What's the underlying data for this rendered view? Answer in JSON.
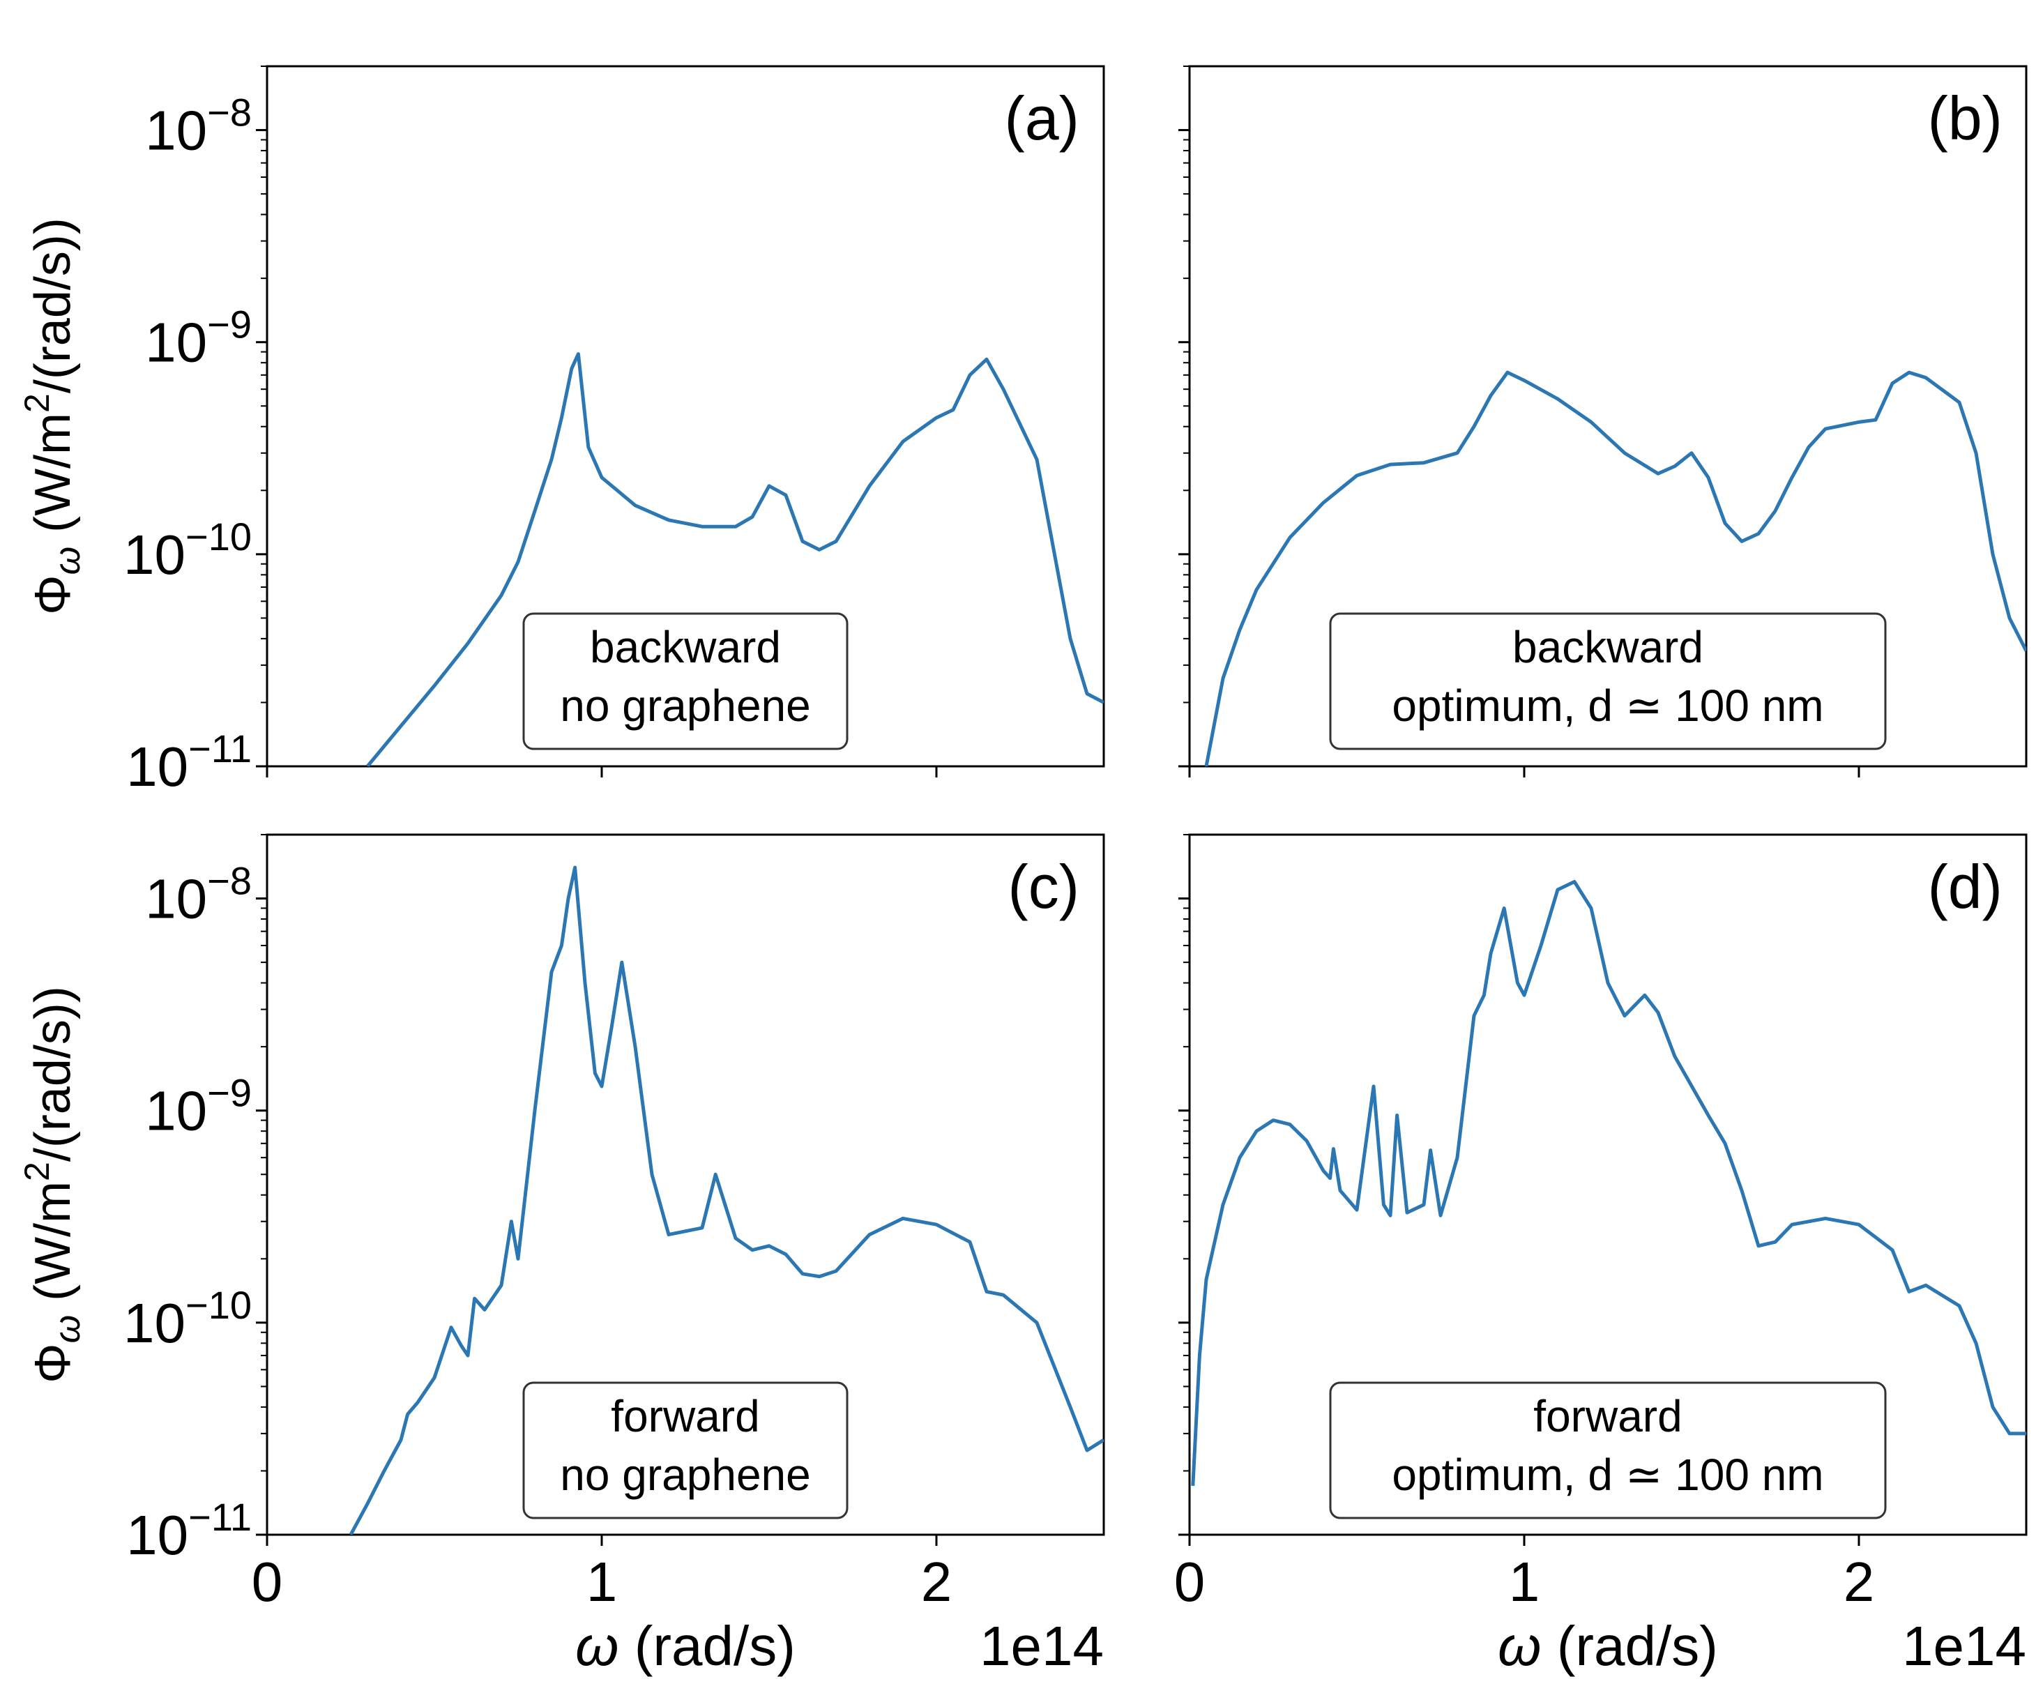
{
  "chart_data": [
    {
      "type": "line",
      "panel": "(a)",
      "annotation": [
        "backward",
        "no graphene"
      ],
      "xlim": [
        0,
        2.5
      ],
      "x_scale": "1e14",
      "ylim": [
        1e-11,
        2e-08
      ],
      "y_scale": "log",
      "color": "#2a77b4",
      "x": [
        0.3,
        0.4,
        0.5,
        0.6,
        0.7,
        0.75,
        0.8,
        0.85,
        0.88,
        0.91,
        0.93,
        0.96,
        1.0,
        1.1,
        1.2,
        1.3,
        1.4,
        1.45,
        1.5,
        1.55,
        1.6,
        1.65,
        1.7,
        1.8,
        1.9,
        2.0,
        2.05,
        2.1,
        2.15,
        2.2,
        2.3,
        2.4,
        2.45,
        2.5
      ],
      "y": [
        1e-11,
        1.55e-11,
        2.4e-11,
        3.8e-11,
        6.4e-11,
        9.2e-11,
        1.6e-10,
        2.8e-10,
        4.4e-10,
        7.5e-10,
        8.8e-10,
        3.2e-10,
        2.3e-10,
        1.7e-10,
        1.45e-10,
        1.35e-10,
        1.35e-10,
        1.5e-10,
        2.1e-10,
        1.9e-10,
        1.15e-10,
        1.05e-10,
        1.15e-10,
        2.1e-10,
        3.4e-10,
        4.4e-10,
        4.8e-10,
        7e-10,
        8.3e-10,
        6e-10,
        2.8e-10,
        4e-11,
        2.2e-11,
        2e-11
      ]
    },
    {
      "type": "line",
      "panel": "(b)",
      "annotation": [
        "backward",
        "optimum, d ≃ 100 nm"
      ],
      "xlim": [
        0,
        2.5
      ],
      "x_scale": "1e14",
      "ylim": [
        1e-11,
        2e-08
      ],
      "y_scale": "log",
      "color": "#2a77b4",
      "x": [
        0.05,
        0.1,
        0.15,
        0.2,
        0.3,
        0.4,
        0.5,
        0.6,
        0.7,
        0.8,
        0.85,
        0.9,
        0.95,
        1.0,
        1.1,
        1.2,
        1.3,
        1.4,
        1.45,
        1.5,
        1.55,
        1.6,
        1.65,
        1.7,
        1.75,
        1.8,
        1.85,
        1.9,
        2.0,
        2.05,
        2.1,
        2.15,
        2.2,
        2.3,
        2.35,
        2.4,
        2.45,
        2.5
      ],
      "y": [
        1e-11,
        2.6e-11,
        4.4e-11,
        6.8e-11,
        1.2e-10,
        1.75e-10,
        2.35e-10,
        2.65e-10,
        2.7e-10,
        3e-10,
        4e-10,
        5.6e-10,
        7.2e-10,
        6.6e-10,
        5.4e-10,
        4.2e-10,
        3e-10,
        2.4e-10,
        2.6e-10,
        3e-10,
        2.3e-10,
        1.4e-10,
        1.15e-10,
        1.25e-10,
        1.6e-10,
        2.3e-10,
        3.2e-10,
        3.9e-10,
        4.2e-10,
        4.3e-10,
        6.4e-10,
        7.2e-10,
        6.8e-10,
        5.2e-10,
        3e-10,
        1e-10,
        5e-11,
        3.5e-11
      ]
    },
    {
      "type": "line",
      "panel": "(c)",
      "annotation": [
        "forward",
        "no graphene"
      ],
      "xlim": [
        0,
        2.5
      ],
      "x_scale": "1e14",
      "ylim": [
        1e-11,
        2e-08
      ],
      "y_scale": "log",
      "color": "#2a77b4",
      "x": [
        0.25,
        0.3,
        0.35,
        0.4,
        0.42,
        0.45,
        0.5,
        0.55,
        0.58,
        0.6,
        0.62,
        0.65,
        0.7,
        0.73,
        0.75,
        0.8,
        0.85,
        0.88,
        0.9,
        0.92,
        0.95,
        0.98,
        1.0,
        1.03,
        1.06,
        1.1,
        1.15,
        1.2,
        1.3,
        1.34,
        1.4,
        1.45,
        1.5,
        1.55,
        1.6,
        1.65,
        1.7,
        1.8,
        1.9,
        2.0,
        2.1,
        2.15,
        2.2,
        2.3,
        2.4,
        2.45,
        2.5
      ],
      "y": [
        1e-11,
        1.4e-11,
        2e-11,
        2.8e-11,
        3.7e-11,
        4.2e-11,
        5.5e-11,
        9.5e-11,
        7.8e-11,
        7e-11,
        1.3e-10,
        1.15e-10,
        1.5e-10,
        3e-10,
        2e-10,
        1e-09,
        4.5e-09,
        6e-09,
        1e-08,
        1.4e-08,
        4e-09,
        1.5e-09,
        1.3e-09,
        2.5e-09,
        5e-09,
        2e-09,
        5e-10,
        2.6e-10,
        2.8e-10,
        5e-10,
        2.5e-10,
        2.2e-10,
        2.3e-10,
        2.1e-10,
        1.7e-10,
        1.65e-10,
        1.75e-10,
        2.6e-10,
        3.1e-10,
        2.9e-10,
        2.4e-10,
        1.4e-10,
        1.35e-10,
        1e-10,
        4e-11,
        2.5e-11,
        2.8e-11
      ]
    },
    {
      "type": "line",
      "panel": "(d)",
      "annotation": [
        "forward",
        "optimum, d ≃ 100 nm"
      ],
      "xlim": [
        0,
        2.5
      ],
      "x_scale": "1e14",
      "ylim": [
        1e-11,
        2e-08
      ],
      "y_scale": "log",
      "color": "#2a77b4",
      "x": [
        0.01,
        0.03,
        0.05,
        0.1,
        0.15,
        0.2,
        0.25,
        0.3,
        0.35,
        0.4,
        0.42,
        0.43,
        0.45,
        0.5,
        0.55,
        0.58,
        0.6,
        0.62,
        0.65,
        0.7,
        0.72,
        0.75,
        0.8,
        0.85,
        0.88,
        0.9,
        0.94,
        0.98,
        1.0,
        1.05,
        1.1,
        1.15,
        1.2,
        1.25,
        1.3,
        1.36,
        1.4,
        1.45,
        1.55,
        1.6,
        1.65,
        1.7,
        1.75,
        1.8,
        1.9,
        2.0,
        2.1,
        2.15,
        2.2,
        2.3,
        2.35,
        2.4,
        2.45,
        2.5
      ],
      "y": [
        1.7e-11,
        7e-11,
        1.6e-10,
        3.6e-10,
        6e-10,
        8e-10,
        9e-10,
        8.6e-10,
        7.2e-10,
        5.2e-10,
        4.8e-10,
        6.6e-10,
        4.2e-10,
        3.4e-10,
        1.3e-09,
        3.6e-10,
        3.2e-10,
        9.5e-10,
        3.3e-10,
        3.6e-10,
        6.5e-10,
        3.2e-10,
        6e-10,
        2.8e-09,
        3.5e-09,
        5.5e-09,
        9e-09,
        4e-09,
        3.5e-09,
        6e-09,
        1.1e-08,
        1.2e-08,
        9e-09,
        4e-09,
        2.8e-09,
        3.5e-09,
        2.9e-09,
        1.8e-09,
        9.5e-10,
        7e-10,
        4.2e-10,
        2.3e-10,
        2.4e-10,
        2.9e-10,
        3.1e-10,
        2.9e-10,
        2.2e-10,
        1.4e-10,
        1.5e-10,
        1.2e-10,
        8e-11,
        4e-11,
        3e-11,
        3e-11
      ]
    }
  ],
  "labels": {
    "xlabel_left": "ω (rad/s)",
    "xlabel_right": "ω (rad/s)",
    "offset_left": "1e14",
    "offset_right": "1e14",
    "ylabel_top": "Φω (W/m2/(rad/s))",
    "ylabel_bottom": "Φω (W/m2/(rad/s))"
  },
  "ticks": {
    "x": [
      "0",
      "1",
      "2"
    ],
    "y_base": "10",
    "y_exponents": [
      "−8",
      "−9",
      "−10",
      "−11"
    ]
  }
}
